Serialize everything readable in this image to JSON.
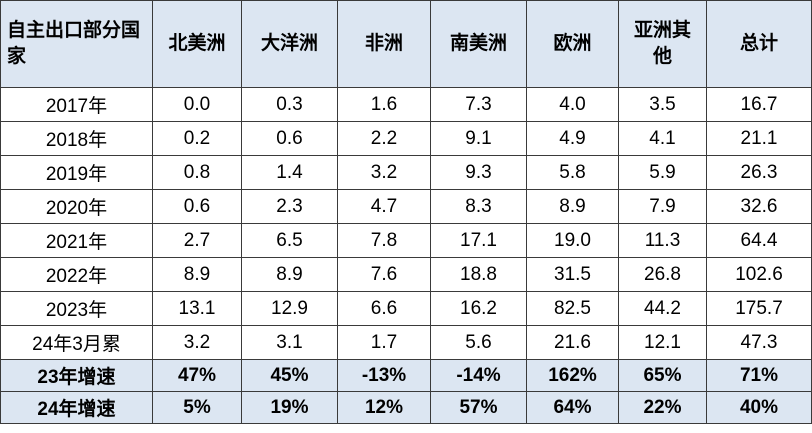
{
  "table": {
    "corner_header": "自主出口部分国家",
    "columns": [
      "北美洲",
      "大洋洲",
      "非洲",
      "南美洲",
      "欧洲",
      "亚洲其他",
      "总计"
    ],
    "rows": [
      {
        "label": "2017年",
        "values": [
          "0.0",
          "0.3",
          "1.6",
          "7.3",
          "4.0",
          "3.5",
          "16.7"
        ]
      },
      {
        "label": "2018年",
        "values": [
          "0.2",
          "0.6",
          "2.2",
          "9.1",
          "4.9",
          "4.1",
          "21.1"
        ]
      },
      {
        "label": "2019年",
        "values": [
          "0.8",
          "1.4",
          "3.2",
          "9.3",
          "5.8",
          "5.9",
          "26.3"
        ]
      },
      {
        "label": "2020年",
        "values": [
          "0.6",
          "2.3",
          "4.7",
          "8.3",
          "8.9",
          "7.9",
          "32.6"
        ]
      },
      {
        "label": "2021年",
        "values": [
          "2.7",
          "6.5",
          "7.8",
          "17.1",
          "19.0",
          "11.3",
          "64.4"
        ]
      },
      {
        "label": "2022年",
        "values": [
          "8.9",
          "8.9",
          "7.6",
          "18.8",
          "31.5",
          "26.8",
          "102.6"
        ]
      },
      {
        "label": "2023年",
        "values": [
          "13.1",
          "12.9",
          "6.6",
          "16.2",
          "82.5",
          "44.2",
          "175.7"
        ]
      },
      {
        "label": "24年3月累",
        "values": [
          "3.2",
          "3.1",
          "1.7",
          "5.6",
          "21.6",
          "12.1",
          "47.3"
        ]
      }
    ],
    "growth_rows": [
      {
        "label": "23年增速",
        "values": [
          "47%",
          "45%",
          "-13%",
          "-14%",
          "162%",
          "65%",
          "71%"
        ]
      },
      {
        "label": "24年增速",
        "values": [
          "5%",
          "19%",
          "12%",
          "57%",
          "64%",
          "22%",
          "40%"
        ]
      }
    ]
  },
  "colors": {
    "header_background": "#dce6f2",
    "border": "#3a3a3a"
  }
}
